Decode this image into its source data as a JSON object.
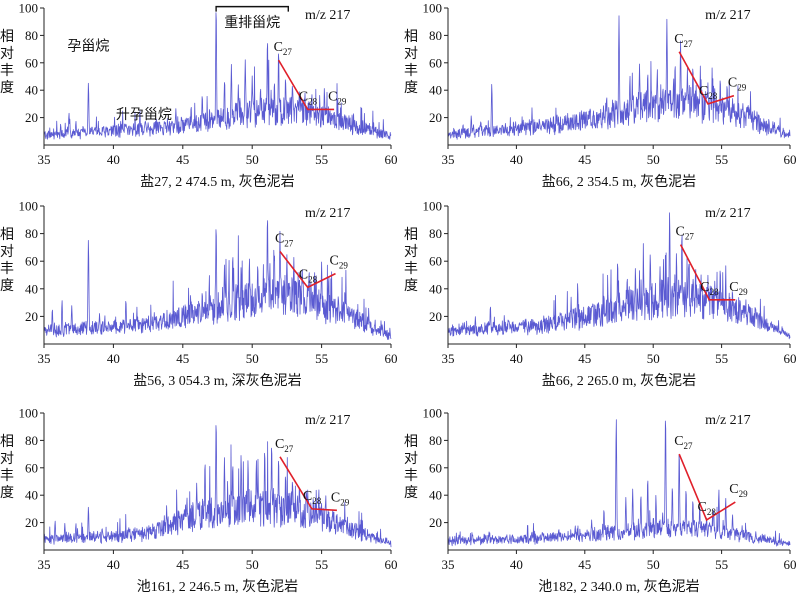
{
  "colors": {
    "trace": "#5a5ad2",
    "marker": "#e0202a",
    "axis": "#222222"
  },
  "ylabel": "相对丰度",
  "chart_data": [
    {
      "type": "line",
      "caption": "盐27, 2 474.5 m, 灰色泥岩",
      "mz": "m/z 217",
      "xlim": [
        35,
        60
      ],
      "ylim": [
        0,
        100
      ],
      "xticks": [
        35,
        40,
        45,
        50,
        55,
        60
      ],
      "yticks": [
        20,
        40,
        60,
        80,
        100
      ],
      "annotations": [
        {
          "text": "孕甾烷",
          "x": 38.2,
          "y": 69
        },
        {
          "text": "升孕甾烷",
          "x": 42.2,
          "y": 19
        },
        {
          "text": "重排甾烷",
          "x": 50,
          "y": 86
        }
      ],
      "bracket": {
        "x1": 47.4,
        "x2": 52.6,
        "y": 101
      },
      "ster": {
        "points": [
          [
            51.9,
            62
          ],
          [
            54.0,
            26
          ],
          [
            55.9,
            26
          ]
        ],
        "labels": [
          "C27",
          "C28",
          "C29"
        ]
      },
      "peaks": [
        [
          36.2,
          14
        ],
        [
          36.8,
          22
        ],
        [
          37.3,
          16
        ],
        [
          38.2,
          44
        ],
        [
          39.3,
          12
        ],
        [
          40.6,
          14
        ],
        [
          41.3,
          10
        ],
        [
          42.5,
          11
        ],
        [
          43.9,
          14
        ],
        [
          44.5,
          24
        ],
        [
          45.6,
          26
        ],
        [
          46.4,
          34
        ],
        [
          47.4,
          98
        ],
        [
          48.0,
          42
        ],
        [
          48.5,
          55
        ],
        [
          49.0,
          40
        ],
        [
          49.5,
          58
        ],
        [
          50.0,
          46
        ],
        [
          50.6,
          38
        ],
        [
          51.1,
          73
        ],
        [
          51.6,
          42
        ],
        [
          51.9,
          65
        ],
        [
          52.4,
          45
        ],
        [
          52.9,
          40
        ],
        [
          53.4,
          36
        ],
        [
          53.8,
          34
        ],
        [
          54.3,
          33
        ],
        [
          54.7,
          24
        ],
        [
          55.2,
          38
        ],
        [
          55.6,
          22
        ],
        [
          56.3,
          14
        ],
        [
          57.4,
          10
        ],
        [
          58.5,
          8
        ]
      ],
      "bg": [
        [
          35,
          6
        ],
        [
          42,
          10
        ],
        [
          46,
          14
        ],
        [
          50,
          22
        ],
        [
          53,
          24
        ],
        [
          57,
          14
        ],
        [
          60,
          5
        ]
      ]
    },
    {
      "type": "line",
      "caption": "盐66, 2 354.5 m, 灰色泥岩",
      "mz": "m/z 217",
      "xlim": [
        35,
        60
      ],
      "ylim": [
        0,
        100
      ],
      "xticks": [
        35,
        40,
        45,
        50,
        55,
        60
      ],
      "yticks": [
        20,
        40,
        60,
        80,
        100
      ],
      "annotations": [],
      "ster": {
        "points": [
          [
            51.9,
            68
          ],
          [
            54.0,
            30
          ],
          [
            55.9,
            36
          ]
        ],
        "labels": [
          "C27",
          "C28",
          "C29"
        ]
      },
      "peaks": [
        [
          36.1,
          14
        ],
        [
          36.7,
          20
        ],
        [
          37.4,
          16
        ],
        [
          38.2,
          43
        ],
        [
          39.2,
          14
        ],
        [
          40.5,
          16
        ],
        [
          41.5,
          14
        ],
        [
          43.0,
          16
        ],
        [
          44.4,
          20
        ],
        [
          45.4,
          24
        ],
        [
          46.6,
          32
        ],
        [
          47.5,
          90
        ],
        [
          48.3,
          46
        ],
        [
          49.0,
          54
        ],
        [
          49.6,
          48
        ],
        [
          50.3,
          50
        ],
        [
          51.0,
          86
        ],
        [
          51.6,
          54
        ],
        [
          52.0,
          70
        ],
        [
          52.5,
          50
        ],
        [
          52.9,
          52
        ],
        [
          53.5,
          42
        ],
        [
          54.0,
          40
        ],
        [
          54.5,
          36
        ],
        [
          54.9,
          44
        ],
        [
          55.4,
          40
        ],
        [
          55.8,
          30
        ],
        [
          56.5,
          22
        ],
        [
          57.5,
          16
        ],
        [
          58.7,
          10
        ]
      ],
      "bg": [
        [
          35,
          6
        ],
        [
          42,
          12
        ],
        [
          46,
          18
        ],
        [
          50,
          28
        ],
        [
          53,
          30
        ],
        [
          57,
          18
        ],
        [
          60,
          5
        ]
      ]
    },
    {
      "type": "line",
      "caption": "盐56, 3 054.3 m, 深灰色泥岩",
      "mz": "m/z 217",
      "xlim": [
        35,
        60
      ],
      "ylim": [
        0,
        100
      ],
      "xticks": [
        35,
        40,
        45,
        50,
        55,
        60
      ],
      "yticks": [
        20,
        40,
        60,
        80,
        100
      ],
      "annotations": [],
      "ster": {
        "points": [
          [
            52.0,
            67
          ],
          [
            54.0,
            41
          ],
          [
            56.0,
            51
          ]
        ],
        "labels": [
          "C27",
          "C28",
          "C29"
        ]
      },
      "peaks": [
        [
          35.6,
          24
        ],
        [
          36.3,
          30
        ],
        [
          37.0,
          26
        ],
        [
          38.2,
          74
        ],
        [
          39.0,
          20
        ],
        [
          40.1,
          16
        ],
        [
          40.9,
          30
        ],
        [
          42.2,
          16
        ],
        [
          43.6,
          18
        ],
        [
          44.6,
          22
        ],
        [
          45.6,
          28
        ],
        [
          46.4,
          34
        ],
        [
          47.4,
          82
        ],
        [
          48.0,
          52
        ],
        [
          48.6,
          60
        ],
        [
          49.2,
          50
        ],
        [
          49.8,
          56
        ],
        [
          50.4,
          52
        ],
        [
          51.1,
          87
        ],
        [
          51.6,
          60
        ],
        [
          52.0,
          75
        ],
        [
          52.5,
          58
        ],
        [
          53.0,
          56
        ],
        [
          53.6,
          50
        ],
        [
          54.1,
          48
        ],
        [
          54.6,
          46
        ],
        [
          55.0,
          54
        ],
        [
          55.5,
          40
        ],
        [
          56.2,
          30
        ],
        [
          57.2,
          22
        ],
        [
          58.3,
          14
        ]
      ],
      "bg": [
        [
          35,
          8
        ],
        [
          42,
          12
        ],
        [
          46,
          20
        ],
        [
          50,
          32
        ],
        [
          53,
          34
        ],
        [
          57,
          20
        ],
        [
          60,
          4
        ]
      ]
    },
    {
      "type": "line",
      "caption": "盐66, 2 265.0 m, 灰色泥岩",
      "mz": "m/z 217",
      "xlim": [
        35,
        60
      ],
      "ylim": [
        0,
        100
      ],
      "xticks": [
        35,
        40,
        45,
        50,
        55,
        60
      ],
      "yticks": [
        20,
        40,
        60,
        80,
        100
      ],
      "annotations": [],
      "ster": {
        "points": [
          [
            52.0,
            72
          ],
          [
            54.1,
            32
          ],
          [
            56.0,
            32
          ]
        ],
        "labels": [
          "C27",
          "C28",
          "C29"
        ]
      },
      "peaks": [
        [
          36.2,
          14
        ],
        [
          37.0,
          18
        ],
        [
          38.1,
          26
        ],
        [
          39.4,
          16
        ],
        [
          40.7,
          16
        ],
        [
          42.0,
          18
        ],
        [
          43.2,
          20
        ],
        [
          44.5,
          22
        ],
        [
          45.6,
          26
        ],
        [
          46.4,
          32
        ],
        [
          47.4,
          56
        ],
        [
          48.1,
          44
        ],
        [
          48.7,
          50
        ],
        [
          49.3,
          46
        ],
        [
          49.8,
          52
        ],
        [
          50.5,
          50
        ],
        [
          51.2,
          90
        ],
        [
          51.7,
          60
        ],
        [
          52.1,
          76
        ],
        [
          52.6,
          54
        ],
        [
          53.1,
          50
        ],
        [
          53.5,
          44
        ],
        [
          54.0,
          44
        ],
        [
          54.5,
          40
        ],
        [
          54.9,
          50
        ],
        [
          55.3,
          44
        ],
        [
          55.8,
          32
        ],
        [
          56.6,
          24
        ],
        [
          57.6,
          20
        ],
        [
          58.7,
          12
        ]
      ],
      "bg": [
        [
          35,
          8
        ],
        [
          42,
          12
        ],
        [
          46,
          20
        ],
        [
          50,
          30
        ],
        [
          53,
          32
        ],
        [
          57,
          20
        ],
        [
          60,
          4
        ]
      ]
    },
    {
      "type": "line",
      "caption": "池161, 2 246.5 m, 灰色泥岩",
      "mz": "m/z 217",
      "xlim": [
        35,
        60
      ],
      "ylim": [
        0,
        100
      ],
      "xticks": [
        35,
        40,
        45,
        50,
        55,
        60
      ],
      "yticks": [
        20,
        40,
        60,
        80,
        100
      ],
      "annotations": [],
      "ster": {
        "points": [
          [
            52.0,
            68
          ],
          [
            54.3,
            30
          ],
          [
            56.1,
            29
          ]
        ],
        "labels": [
          "C27",
          "C28",
          "C29"
        ]
      },
      "peaks": [
        [
          35.8,
          20
        ],
        [
          36.5,
          18
        ],
        [
          37.3,
          18
        ],
        [
          38.2,
          30
        ],
        [
          39.2,
          14
        ],
        [
          40.2,
          12
        ],
        [
          41.4,
          12
        ],
        [
          42.6,
          14
        ],
        [
          43.8,
          16
        ],
        [
          44.7,
          20
        ],
        [
          45.3,
          34
        ],
        [
          46.0,
          44
        ],
        [
          46.6,
          60
        ],
        [
          47.4,
          90
        ],
        [
          48.0,
          62
        ],
        [
          48.6,
          58
        ],
        [
          49.2,
          64
        ],
        [
          49.7,
          60
        ],
        [
          50.3,
          60
        ],
        [
          50.9,
          68
        ],
        [
          51.4,
          72
        ],
        [
          51.9,
          62
        ],
        [
          52.4,
          50
        ],
        [
          52.9,
          46
        ],
        [
          53.4,
          42
        ],
        [
          53.9,
          40
        ],
        [
          54.4,
          34
        ],
        [
          54.8,
          40
        ],
        [
          55.3,
          36
        ],
        [
          55.8,
          26
        ],
        [
          56.6,
          20
        ],
        [
          57.6,
          14
        ],
        [
          58.7,
          10
        ]
      ],
      "bg": [
        [
          35,
          6
        ],
        [
          42,
          10
        ],
        [
          46,
          24
        ],
        [
          50,
          30
        ],
        [
          53,
          28
        ],
        [
          57,
          14
        ],
        [
          60,
          3
        ]
      ]
    },
    {
      "type": "line",
      "caption": "池182, 2 340.0 m, 灰色泥岩",
      "mz": "m/z 217",
      "xlim": [
        35,
        60
      ],
      "ylim": [
        0,
        100
      ],
      "xticks": [
        35,
        40,
        45,
        50,
        55,
        60
      ],
      "yticks": [
        20,
        40,
        60,
        80,
        100
      ],
      "annotations": [],
      "ster": {
        "points": [
          [
            51.9,
            70
          ],
          [
            53.9,
            22
          ],
          [
            56.0,
            35
          ]
        ],
        "labels": [
          "C27",
          "C28",
          "C29"
        ]
      },
      "peaks": [
        [
          35.8,
          10
        ],
        [
          36.8,
          10
        ],
        [
          38.0,
          12
        ],
        [
          39.3,
          10
        ],
        [
          40.6,
          10
        ],
        [
          41.9,
          12
        ],
        [
          43.1,
          14
        ],
        [
          44.3,
          16
        ],
        [
          45.5,
          20
        ],
        [
          46.4,
          28
        ],
        [
          47.3,
          94
        ],
        [
          48.0,
          36
        ],
        [
          48.5,
          42
        ],
        [
          49.1,
          38
        ],
        [
          49.6,
          50
        ],
        [
          50.2,
          36
        ],
        [
          50.9,
          96
        ],
        [
          51.4,
          44
        ],
        [
          51.9,
          70
        ],
        [
          52.4,
          42
        ],
        [
          52.9,
          34
        ],
        [
          53.4,
          30
        ],
        [
          53.9,
          22
        ],
        [
          54.4,
          28
        ],
        [
          54.8,
          42
        ],
        [
          55.3,
          36
        ],
        [
          55.8,
          24
        ],
        [
          56.5,
          16
        ],
        [
          57.5,
          12
        ],
        [
          58.6,
          8
        ]
      ],
      "bg": [
        [
          35,
          5
        ],
        [
          42,
          7
        ],
        [
          46,
          10
        ],
        [
          50,
          14
        ],
        [
          53,
          14
        ],
        [
          57,
          8
        ],
        [
          60,
          3
        ]
      ]
    }
  ]
}
